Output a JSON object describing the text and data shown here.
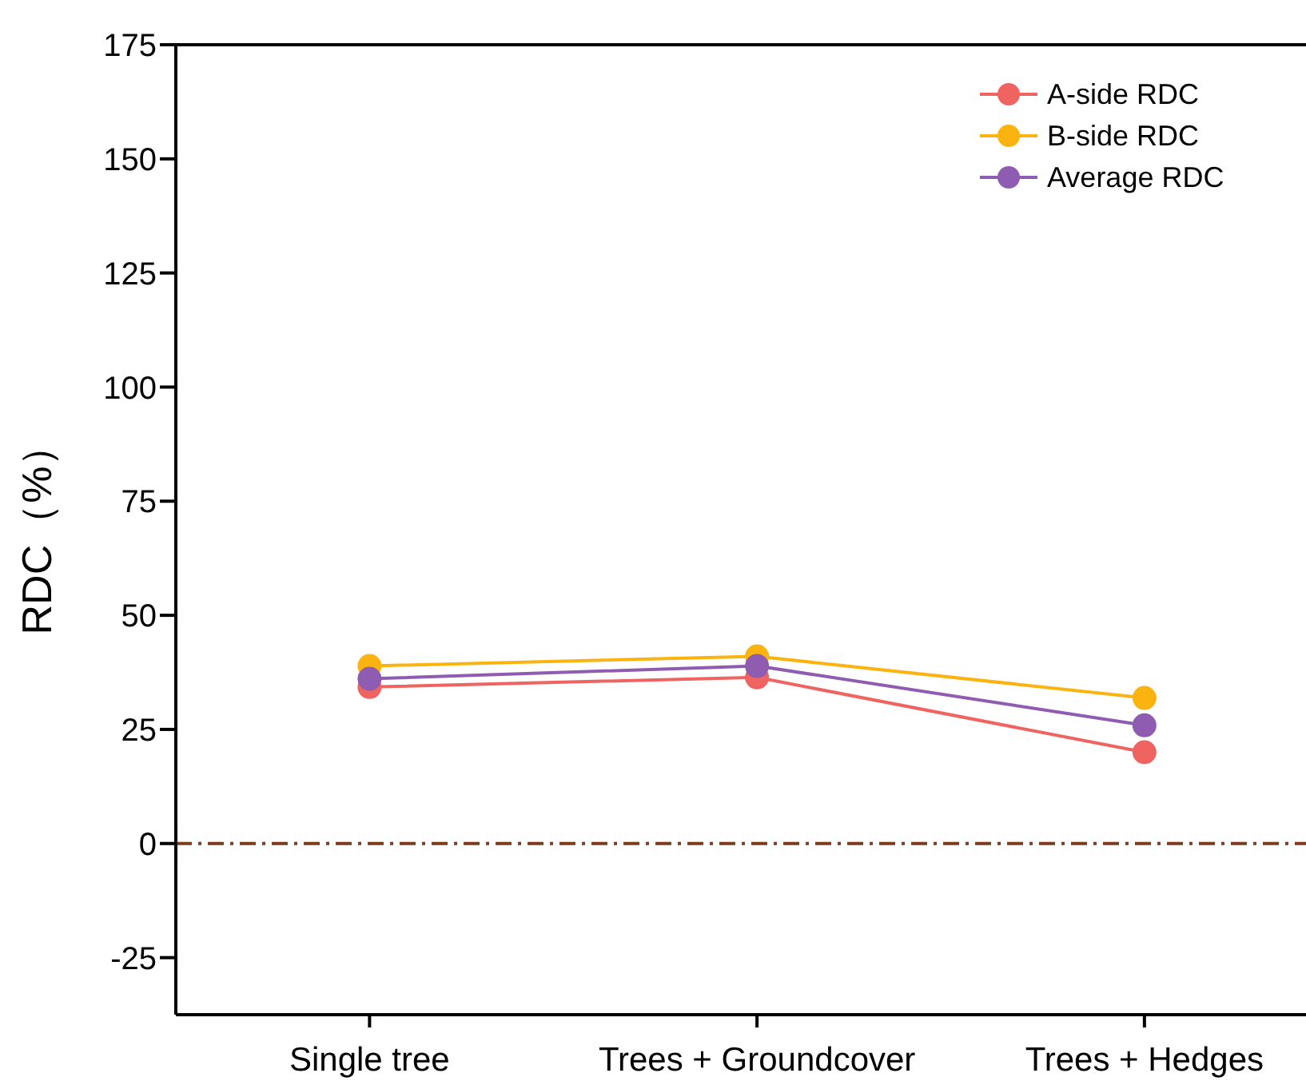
{
  "chart_data": {
    "type": "line",
    "ylabel": "RDC（%）",
    "categories": [
      "Single tree",
      "Trees + Groundcover",
      "Trees + Hedges"
    ],
    "series": [
      {
        "name": "A-side RDC",
        "color": "#ef6461",
        "values": [
          34.3,
          36.4,
          20.0
        ]
      },
      {
        "name": "B-side RDC",
        "color": "#fbb30f",
        "values": [
          38.9,
          41.0,
          31.9
        ]
      },
      {
        "name": "Average RDC",
        "color": "#8e5cb0",
        "values": [
          36.1,
          38.9,
          25.9
        ]
      }
    ],
    "ylim": [
      -37.5,
      175
    ],
    "yticks": [
      -25,
      0,
      25,
      50,
      75,
      100,
      125,
      150,
      175
    ],
    "grid": false,
    "legend": "top right",
    "marker": "circle",
    "line_style": "solid",
    "ref_lines": [
      {
        "axis": "y",
        "value": 0,
        "color": "#7a3b1e",
        "line_style": "dashdot"
      }
    ]
  }
}
